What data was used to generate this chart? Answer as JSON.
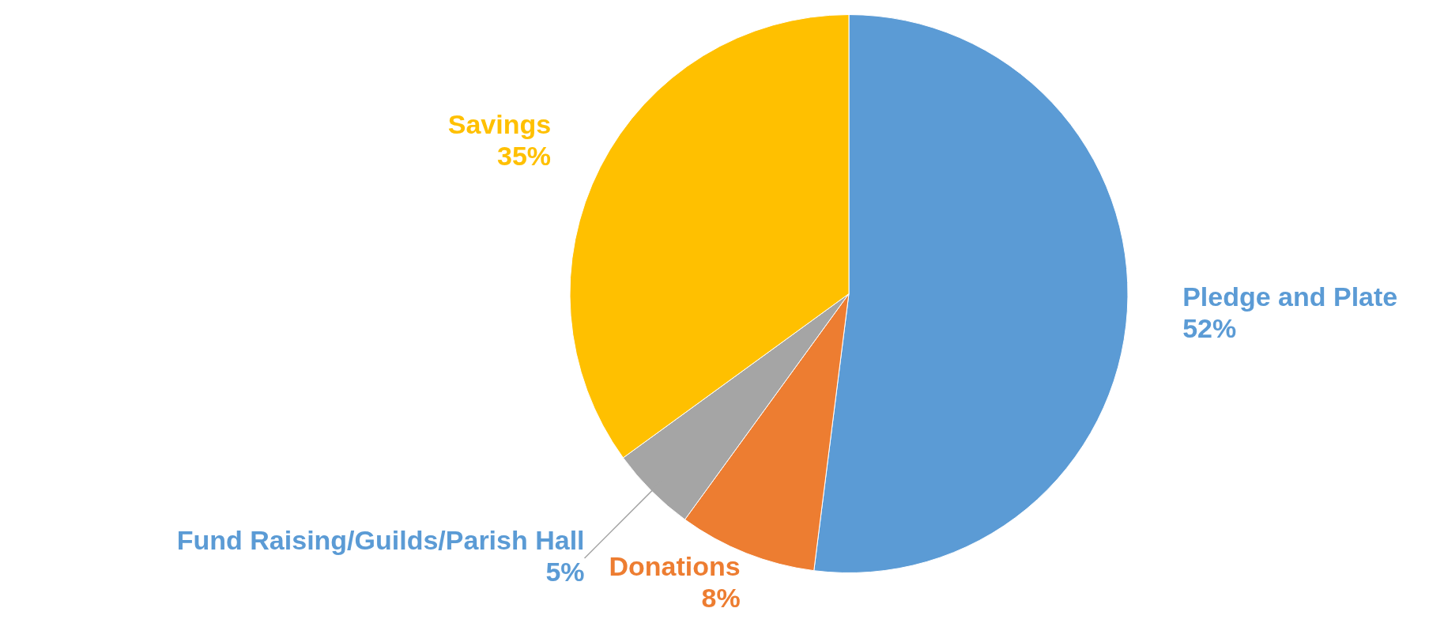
{
  "chart_data": {
    "type": "pie",
    "categories": [
      "Pledge and Plate",
      "Donations",
      "Fund Raising/Guilds/Parish Hall",
      "Savings"
    ],
    "values": [
      52,
      8,
      5,
      35
    ],
    "value_labels": [
      "52%",
      "8%",
      "5%",
      "35%"
    ],
    "colors": [
      "#5b9bd5",
      "#ed7d31",
      "#a5a5a5",
      "#ffc000"
    ],
    "legend": false
  }
}
